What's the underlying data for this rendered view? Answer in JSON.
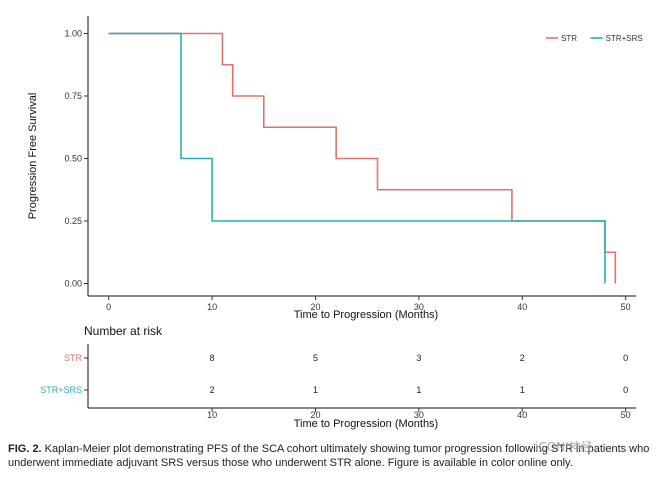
{
  "chart_data": [
    {
      "type": "line",
      "title": "",
      "xlabel": "Time to Progression (Months)",
      "ylabel": "Progression Free Survival",
      "xlim": [
        -2,
        51
      ],
      "ylim": [
        -0.05,
        1.07
      ],
      "xticks": [
        0,
        10,
        20,
        30,
        40,
        50
      ],
      "yticks": [
        0.0,
        0.25,
        0.5,
        0.75,
        1.0
      ],
      "ytick_labels": [
        "0.00",
        "0.25",
        "0.50",
        "0.75",
        "1.00"
      ],
      "grid": false,
      "legend_position": "top-right",
      "series": [
        {
          "name": "STR",
          "color": "#e8716a",
          "steps": [
            [
              0,
              1.0
            ],
            [
              11,
              0.875
            ],
            [
              12,
              0.75
            ],
            [
              15,
              0.625
            ],
            [
              22,
              0.5
            ],
            [
              26,
              0.375
            ],
            [
              39,
              0.25
            ],
            [
              48,
              0.125
            ],
            [
              49,
              0.0
            ]
          ],
          "end_x": 49
        },
        {
          "name": "STR+SRS",
          "color": "#1fb5b8",
          "steps": [
            [
              0,
              1.0
            ],
            [
              7,
              0.5
            ],
            [
              10,
              0.25
            ],
            [
              48,
              0.0
            ]
          ],
          "end_x": 48
        }
      ]
    },
    {
      "type": "table",
      "title": "Number at risk",
      "xlabel": "Time to Progression (Months)",
      "xticks": [
        10,
        20,
        30,
        40,
        50
      ],
      "rows": [
        {
          "name": "STR",
          "color": "#e8716a",
          "values": [
            "8",
            "5",
            "3",
            "2",
            "0"
          ]
        },
        {
          "name": "STR+SRS",
          "color": "#1fb5b8",
          "values": [
            "2",
            "1",
            "1",
            "1",
            "0"
          ]
        }
      ]
    }
  ],
  "caption": {
    "label": "FIG. 2.",
    "text": " Kaplan-Meier plot demonstrating PFS of the SCA cohort ultimately showing tumor progression following STR in patients who underwent immediate adjuvant SRS versus those who underwent STR alone. Figure is available in color online only."
  },
  "watermark": "iCONI神经"
}
